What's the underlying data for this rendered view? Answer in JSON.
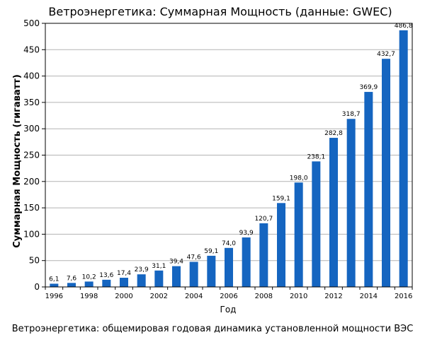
{
  "chart_data": {
    "type": "bar",
    "title": "Ветроэнергетика: Суммарная Мощность (данные: GWEC)",
    "xlabel": "Год",
    "ylabel": "Суммарная Мощность (гигаватт)",
    "ylim": [
      0,
      500
    ],
    "yticks": [
      "0",
      "50",
      "100",
      "150",
      "200",
      "250",
      "300",
      "350",
      "400",
      "450",
      "500"
    ],
    "grid": true,
    "legend": "none",
    "bar_color": "#1565c0",
    "categories": [
      "1996",
      "1997",
      "1998",
      "1999",
      "2000",
      "2001",
      "2002",
      "2003",
      "2004",
      "2005",
      "2006",
      "2007",
      "2008",
      "2009",
      "2010",
      "2011",
      "2012",
      "2013",
      "2014",
      "2015",
      "2016"
    ],
    "xtick_labels": [
      "1996",
      "",
      "1998",
      "",
      "2000",
      "",
      "2002",
      "",
      "2004",
      "",
      "2006",
      "",
      "2008",
      "",
      "2010",
      "",
      "2012",
      "",
      "2014",
      "",
      "2016"
    ],
    "values": [
      6.1,
      7.6,
      10.2,
      13.6,
      17.4,
      23.9,
      31.1,
      39.4,
      47.6,
      59.1,
      74.0,
      93.9,
      120.7,
      159.1,
      198.0,
      238.1,
      282.8,
      318.7,
      369.9,
      432.7,
      486.8
    ],
    "data_labels": [
      "6,1",
      "7,6",
      "10,2",
      "13,6",
      "17,4",
      "23,9",
      "31,1",
      "39,4",
      "47,6",
      "59,1",
      "74,0",
      "93,9",
      "120,7",
      "159,1",
      "198,0",
      "238,1",
      "282,8",
      "318,7",
      "369,9",
      "432,7",
      "486,8"
    ]
  },
  "caption": "Ветроэнергетика: общемировая годовая динамика установленной мощности ВЭС"
}
